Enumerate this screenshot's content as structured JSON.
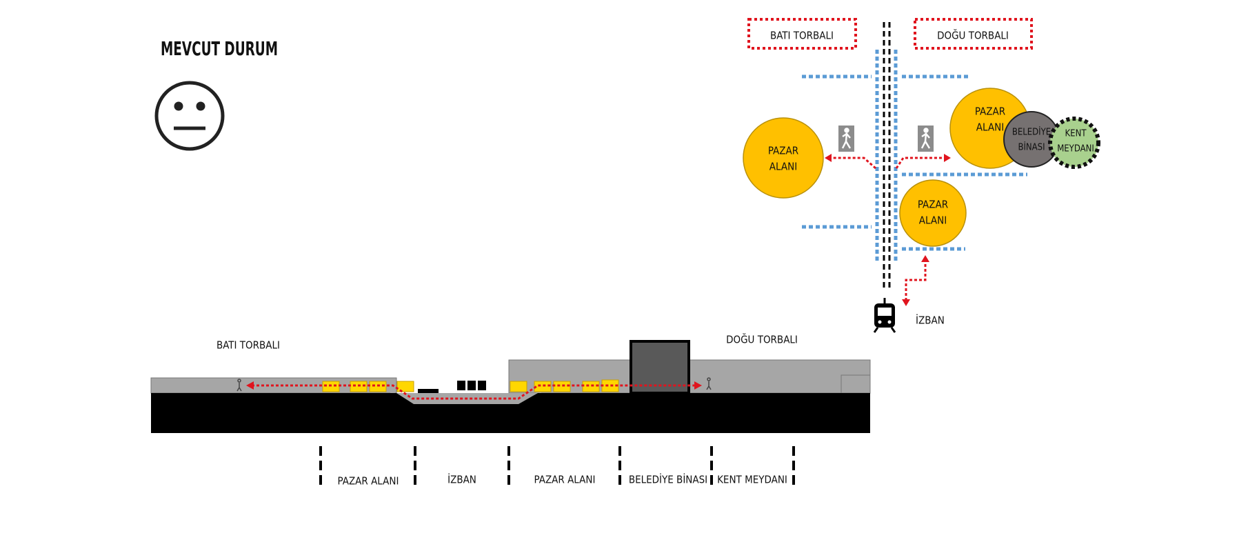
{
  "title": "MEVCUT DURUM",
  "plan": {
    "west_label": "BATI TORBALI",
    "east_label": "DOĞU TORBALI",
    "areas": [
      {
        "lines": [
          "PAZAR",
          "ALANI"
        ]
      },
      {
        "lines": [
          "PAZAR",
          "ALANI"
        ]
      },
      {
        "lines": [
          "BELEDİYE",
          "BİNASI"
        ]
      },
      {
        "lines": [
          "KENT",
          "MEYDANI"
        ]
      },
      {
        "lines": [
          "PAZAR",
          "ALANI"
        ]
      }
    ],
    "station": "İZBAN"
  },
  "section": {
    "west_label": "BATI TORBALI",
    "east_label": "DOĞU TORBALI",
    "zones": [
      "PAZAR ALANI",
      "İZBAN",
      "PAZAR ALANI",
      "BELEDİYE BİNASI",
      "KENT MEYDANI"
    ]
  }
}
